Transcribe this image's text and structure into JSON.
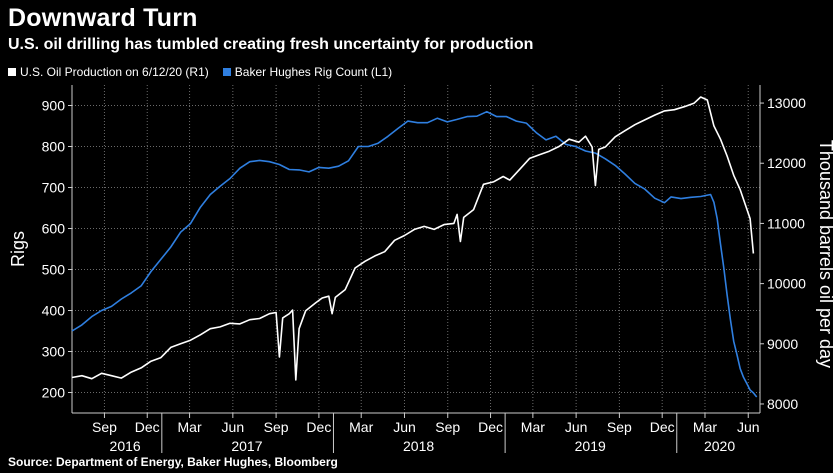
{
  "header": {
    "title": "Downward Turn",
    "subtitle": "U.S. oil drilling has tumbled creating fresh uncertainty for production"
  },
  "footer": {
    "source": "Source: Department of Energy, Baker Hughes, Bloomberg"
  },
  "colors": {
    "production": "#ffffff",
    "rigs": "#2f7fe0",
    "grid": "#6a6a6a",
    "background": "#000000"
  },
  "chart_data": {
    "type": "line",
    "legend_position": "top-left",
    "grid": true,
    "left_axis": {
      "label": "Rigs",
      "range": [
        150,
        950
      ],
      "ticks": [
        200,
        300,
        400,
        500,
        600,
        700,
        800,
        900
      ]
    },
    "right_axis": {
      "label": "Thousand barrels oil per day",
      "range": [
        7850,
        13300
      ],
      "ticks": [
        8000,
        9000,
        10000,
        11000,
        12000,
        13000
      ]
    },
    "x_axis": {
      "range": [
        "2016-06-24",
        "2020-06-26"
      ],
      "month_ticks": [
        {
          "date": "2016-09-01",
          "label": "Sep"
        },
        {
          "date": "2016-12-01",
          "label": "Dec"
        },
        {
          "date": "2017-03-01",
          "label": "Mar"
        },
        {
          "date": "2017-06-01",
          "label": "Jun"
        },
        {
          "date": "2017-09-01",
          "label": "Sep"
        },
        {
          "date": "2017-12-01",
          "label": "Dec"
        },
        {
          "date": "2018-03-01",
          "label": "Mar"
        },
        {
          "date": "2018-06-01",
          "label": "Jun"
        },
        {
          "date": "2018-09-01",
          "label": "Sep"
        },
        {
          "date": "2018-12-01",
          "label": "Dec"
        },
        {
          "date": "2019-03-01",
          "label": "Mar"
        },
        {
          "date": "2019-06-01",
          "label": "Jun"
        },
        {
          "date": "2019-09-01",
          "label": "Sep"
        },
        {
          "date": "2019-12-01",
          "label": "Dec"
        },
        {
          "date": "2020-03-01",
          "label": "Mar"
        },
        {
          "date": "2020-06-01",
          "label": "Jun"
        }
      ],
      "year_labels": [
        {
          "date": "2016-10-15",
          "label": "2016"
        },
        {
          "date": "2017-07-01",
          "label": "2017"
        },
        {
          "date": "2018-07-01",
          "label": "2018"
        },
        {
          "date": "2019-07-01",
          "label": "2019"
        },
        {
          "date": "2020-04-01",
          "label": "2020"
        }
      ]
    },
    "series": [
      {
        "name": "U.S. Oil Production on 6/12/20 (R1)",
        "axis": "right",
        "points": [
          [
            "2016-06-24",
            8440
          ],
          [
            "2016-07-15",
            8470
          ],
          [
            "2016-08-05",
            8420
          ],
          [
            "2016-08-26",
            8510
          ],
          [
            "2016-09-16",
            8470
          ],
          [
            "2016-10-07",
            8430
          ],
          [
            "2016-10-28",
            8530
          ],
          [
            "2016-11-18",
            8600
          ],
          [
            "2016-12-09",
            8710
          ],
          [
            "2016-12-30",
            8770
          ],
          [
            "2017-01-20",
            8940
          ],
          [
            "2017-02-10",
            9000
          ],
          [
            "2017-03-03",
            9060
          ],
          [
            "2017-03-24",
            9150
          ],
          [
            "2017-04-14",
            9250
          ],
          [
            "2017-05-05",
            9280
          ],
          [
            "2017-05-26",
            9340
          ],
          [
            "2017-06-16",
            9330
          ],
          [
            "2017-07-07",
            9400
          ],
          [
            "2017-07-28",
            9420
          ],
          [
            "2017-08-18",
            9500
          ],
          [
            "2017-09-01",
            9520
          ],
          [
            "2017-09-08",
            8780
          ],
          [
            "2017-09-15",
            9430
          ],
          [
            "2017-09-29",
            9500
          ],
          [
            "2017-10-06",
            9560
          ],
          [
            "2017-10-13",
            8400
          ],
          [
            "2017-10-20",
            9250
          ],
          [
            "2017-11-03",
            9550
          ],
          [
            "2017-11-24",
            9680
          ],
          [
            "2017-12-08",
            9760
          ],
          [
            "2017-12-22",
            9790
          ],
          [
            "2017-12-29",
            9500
          ],
          [
            "2018-01-05",
            9770
          ],
          [
            "2018-01-26",
            9900
          ],
          [
            "2018-02-16",
            10260
          ],
          [
            "2018-03-09",
            10370
          ],
          [
            "2018-03-30",
            10460
          ],
          [
            "2018-04-20",
            10530
          ],
          [
            "2018-05-11",
            10720
          ],
          [
            "2018-06-01",
            10800
          ],
          [
            "2018-06-22",
            10900
          ],
          [
            "2018-07-13",
            10950
          ],
          [
            "2018-08-03",
            10900
          ],
          [
            "2018-08-24",
            10980
          ],
          [
            "2018-09-14",
            11000
          ],
          [
            "2018-09-21",
            11150
          ],
          [
            "2018-09-28",
            10700
          ],
          [
            "2018-10-05",
            11100
          ],
          [
            "2018-10-26",
            11230
          ],
          [
            "2018-11-16",
            11650
          ],
          [
            "2018-12-07",
            11690
          ],
          [
            "2018-12-28",
            11780
          ],
          [
            "2019-01-11",
            11720
          ],
          [
            "2019-02-01",
            11900
          ],
          [
            "2019-02-22",
            12080
          ],
          [
            "2019-03-15",
            12140
          ],
          [
            "2019-04-05",
            12200
          ],
          [
            "2019-04-26",
            12280
          ],
          [
            "2019-05-17",
            12400
          ],
          [
            "2019-06-07",
            12350
          ],
          [
            "2019-06-21",
            12450
          ],
          [
            "2019-07-05",
            12270
          ],
          [
            "2019-07-12",
            11630
          ],
          [
            "2019-07-19",
            12230
          ],
          [
            "2019-08-02",
            12270
          ],
          [
            "2019-08-23",
            12440
          ],
          [
            "2019-09-13",
            12540
          ],
          [
            "2019-10-04",
            12640
          ],
          [
            "2019-10-25",
            12720
          ],
          [
            "2019-11-15",
            12800
          ],
          [
            "2019-12-06",
            12870
          ],
          [
            "2019-12-27",
            12890
          ],
          [
            "2020-01-17",
            12940
          ],
          [
            "2020-02-07",
            13000
          ],
          [
            "2020-02-21",
            13100
          ],
          [
            "2020-03-06",
            13050
          ],
          [
            "2020-03-20",
            12620
          ],
          [
            "2020-04-03",
            12400
          ],
          [
            "2020-04-17",
            12120
          ],
          [
            "2020-05-01",
            11800
          ],
          [
            "2020-05-15",
            11560
          ],
          [
            "2020-06-05",
            11080
          ],
          [
            "2020-06-12",
            10500
          ]
        ]
      },
      {
        "name": "Baker Hughes Rig Count (L1)",
        "axis": "left",
        "points": [
          [
            "2016-06-24",
            350
          ],
          [
            "2016-07-15",
            365
          ],
          [
            "2016-08-05",
            385
          ],
          [
            "2016-08-26",
            400
          ],
          [
            "2016-09-16",
            410
          ],
          [
            "2016-10-07",
            428
          ],
          [
            "2016-10-28",
            443
          ],
          [
            "2016-11-18",
            460
          ],
          [
            "2016-12-09",
            495
          ],
          [
            "2016-12-30",
            525
          ],
          [
            "2017-01-20",
            555
          ],
          [
            "2017-02-10",
            591
          ],
          [
            "2017-03-03",
            612
          ],
          [
            "2017-03-24",
            652
          ],
          [
            "2017-04-14",
            683
          ],
          [
            "2017-05-05",
            703
          ],
          [
            "2017-05-26",
            722
          ],
          [
            "2017-06-16",
            747
          ],
          [
            "2017-07-07",
            763
          ],
          [
            "2017-07-28",
            766
          ],
          [
            "2017-08-18",
            763
          ],
          [
            "2017-09-08",
            756
          ],
          [
            "2017-09-29",
            744
          ],
          [
            "2017-10-20",
            743
          ],
          [
            "2017-11-10",
            738
          ],
          [
            "2017-12-01",
            749
          ],
          [
            "2017-12-22",
            747
          ],
          [
            "2018-01-12",
            752
          ],
          [
            "2018-02-02",
            765
          ],
          [
            "2018-02-23",
            800
          ],
          [
            "2018-03-16",
            800
          ],
          [
            "2018-04-06",
            808
          ],
          [
            "2018-04-27",
            825
          ],
          [
            "2018-05-18",
            844
          ],
          [
            "2018-06-08",
            862
          ],
          [
            "2018-06-29",
            858
          ],
          [
            "2018-07-20",
            858
          ],
          [
            "2018-08-10",
            869
          ],
          [
            "2018-08-31",
            860
          ],
          [
            "2018-09-21",
            866
          ],
          [
            "2018-10-12",
            873
          ],
          [
            "2018-11-02",
            874
          ],
          [
            "2018-11-23",
            885
          ],
          [
            "2018-12-14",
            873
          ],
          [
            "2019-01-04",
            873
          ],
          [
            "2019-01-25",
            862
          ],
          [
            "2019-02-15",
            857
          ],
          [
            "2019-03-08",
            834
          ],
          [
            "2019-03-29",
            816
          ],
          [
            "2019-04-19",
            825
          ],
          [
            "2019-05-10",
            805
          ],
          [
            "2019-05-31",
            800
          ],
          [
            "2019-06-21",
            789
          ],
          [
            "2019-07-12",
            784
          ],
          [
            "2019-08-02",
            770
          ],
          [
            "2019-08-23",
            754
          ],
          [
            "2019-09-13",
            733
          ],
          [
            "2019-10-04",
            710
          ],
          [
            "2019-10-25",
            696
          ],
          [
            "2019-11-15",
            674
          ],
          [
            "2019-12-06",
            663
          ],
          [
            "2019-12-20",
            677
          ],
          [
            "2020-01-10",
            673
          ],
          [
            "2020-01-31",
            676
          ],
          [
            "2020-02-21",
            678
          ],
          [
            "2020-03-13",
            683
          ],
          [
            "2020-03-20",
            664
          ],
          [
            "2020-03-27",
            624
          ],
          [
            "2020-04-03",
            562
          ],
          [
            "2020-04-10",
            504
          ],
          [
            "2020-04-17",
            438
          ],
          [
            "2020-04-24",
            378
          ],
          [
            "2020-05-01",
            325
          ],
          [
            "2020-05-08",
            292
          ],
          [
            "2020-05-15",
            258
          ],
          [
            "2020-05-22",
            237
          ],
          [
            "2020-05-29",
            222
          ],
          [
            "2020-06-05",
            206
          ],
          [
            "2020-06-12",
            199
          ],
          [
            "2020-06-19",
            189
          ]
        ]
      }
    ]
  }
}
